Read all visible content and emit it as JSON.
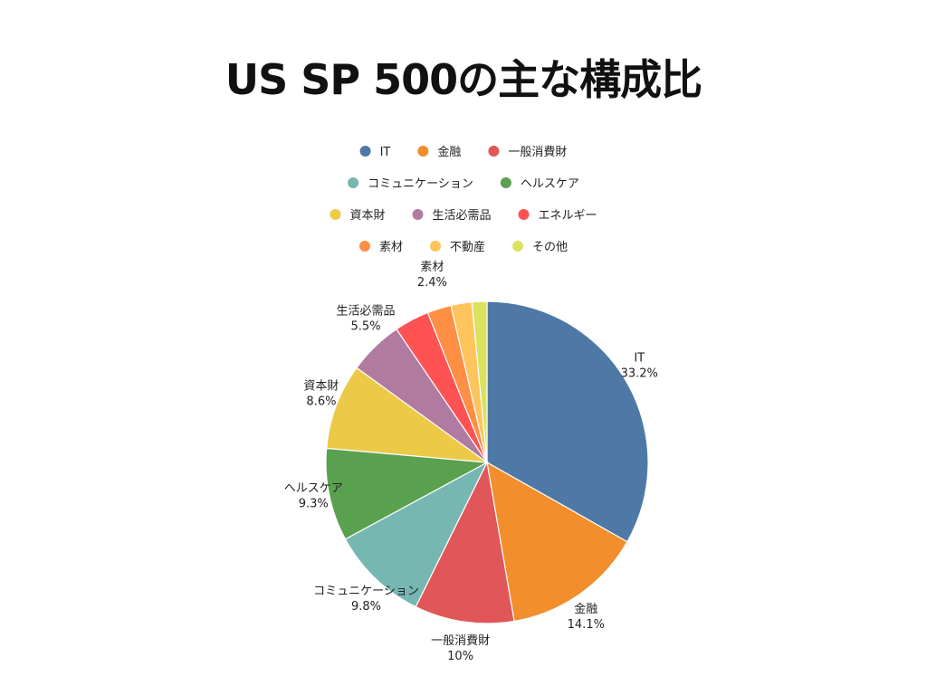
{
  "chart_data": {
    "type": "pie",
    "title": "US SP 500の主な構成比",
    "start_angle_deg": 0,
    "direction": "clockwise",
    "categories": [
      "IT",
      "金融",
      "一般消費財",
      "コミュニケーション",
      "ヘルスケア",
      "資本財",
      "生活必需品",
      "エネルギー",
      "素材",
      "不動産",
      "その他"
    ],
    "values": [
      33.2,
      14.1,
      10,
      9.8,
      9.3,
      8.6,
      5.5,
      3.5,
      2.4,
      2.1,
      1.5
    ],
    "value_labels": [
      "33.2%",
      "14.1%",
      "10%",
      "9.8%",
      "9.3%",
      "8.6%",
      "5.5%",
      "",
      "2.4%",
      "",
      ""
    ],
    "colors": [
      "#4E79A7",
      "#F28E2B",
      "#E15759",
      "#76B7B2",
      "#59A14F",
      "#EDC948",
      "#B07AA1",
      "#FF5252",
      "#FF8F45",
      "#FFC45C",
      "#DBE25E"
    ],
    "legend": {
      "position": "top",
      "rows": [
        [
          "IT",
          "金融",
          "一般消費財"
        ],
        [
          "コミュニケーション",
          "ヘルスケア"
        ],
        [
          "資本財",
          "生活必需品",
          "エネルギー"
        ],
        [
          "素材",
          "不動産",
          "その他"
        ]
      ]
    }
  }
}
